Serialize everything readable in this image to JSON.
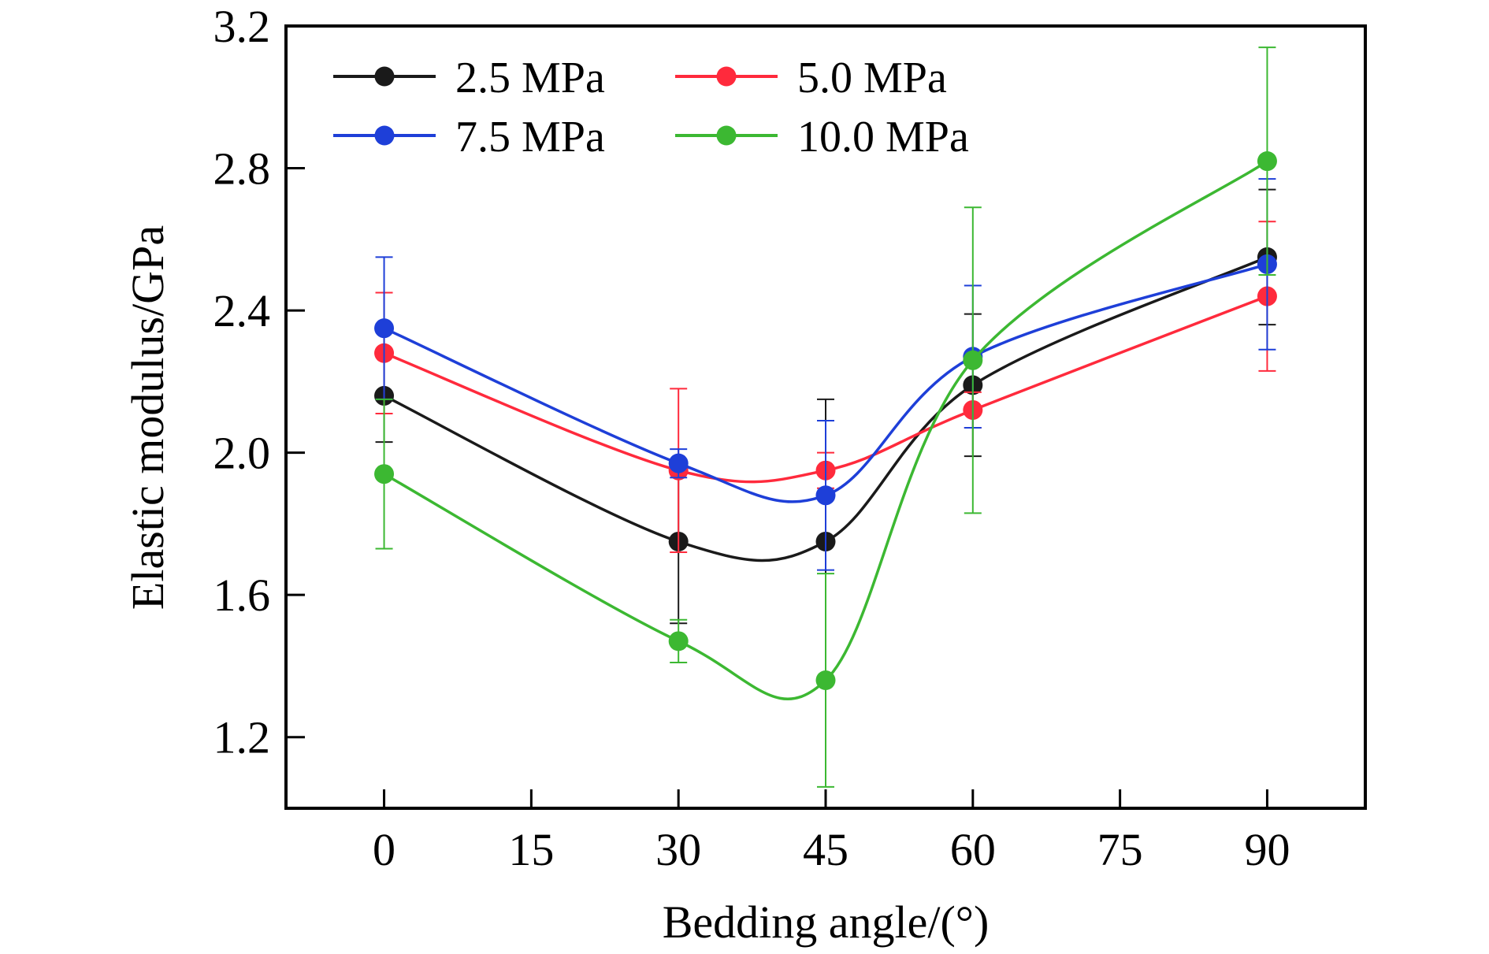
{
  "chart_data": {
    "type": "line",
    "xlabel": "Bedding angle/(°)",
    "ylabel": "Elastic modulus/GPa",
    "xlim": [
      -10,
      100
    ],
    "ylim": [
      1.0,
      3.2
    ],
    "xticks": [
      0,
      15,
      30,
      45,
      60,
      75,
      90
    ],
    "xtick_labels": [
      "0",
      "15",
      "30",
      "45",
      "60",
      "75",
      "90"
    ],
    "yticks": [
      1.2,
      1.6,
      2.0,
      2.4,
      2.8,
      3.2
    ],
    "ytick_labels": [
      "1.2",
      "1.6",
      "2.0",
      "2.4",
      "2.8",
      "3.2"
    ],
    "grid": false,
    "legend_position": "top-left",
    "x": [
      0,
      30,
      45,
      60,
      90
    ],
    "series": [
      {
        "name": "2.5 MPa",
        "color": "#1a1a1a",
        "values": [
          2.16,
          1.75,
          1.75,
          2.19,
          2.55
        ],
        "error": [
          0.13,
          0.23,
          0.4,
          0.2,
          0.19
        ]
      },
      {
        "name": "5.0 MPa",
        "color": "#ff2a3c",
        "values": [
          2.28,
          1.95,
          1.95,
          2.12,
          2.44
        ],
        "error": [
          0.17,
          0.23,
          0.05,
          0.05,
          0.21
        ]
      },
      {
        "name": "7.5 MPa",
        "color": "#1e3fd8",
        "values": [
          2.35,
          1.97,
          1.88,
          2.27,
          2.53
        ],
        "error": [
          0.2,
          0.04,
          0.21,
          0.2,
          0.24
        ]
      },
      {
        "name": "10.0 MPa",
        "color": "#3cb832",
        "values": [
          1.94,
          1.47,
          1.36,
          2.26,
          2.82
        ],
        "error": [
          0.21,
          0.06,
          0.3,
          0.43,
          0.32
        ]
      }
    ]
  }
}
